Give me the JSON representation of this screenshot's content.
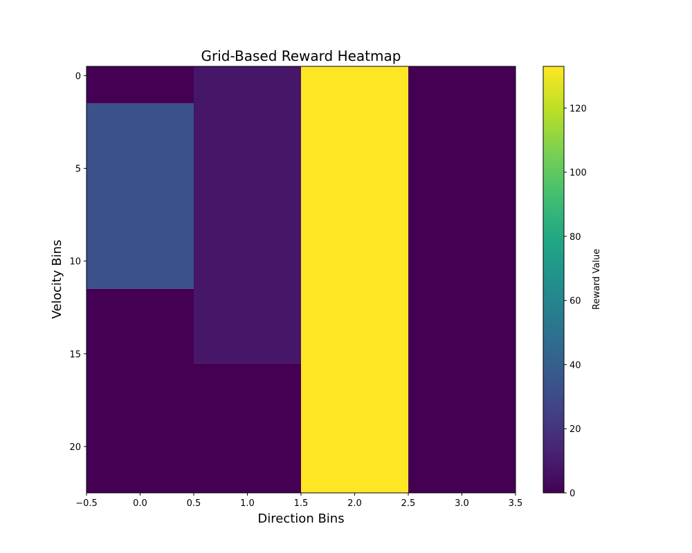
{
  "chart_data": {
    "type": "heatmap",
    "title": "Grid-Based Reward Heatmap",
    "xlabel": "Direction Bins",
    "ylabel": "Velocity Bins",
    "x_range": [
      -0.5,
      3.5
    ],
    "y_range": [
      -0.5,
      22.5
    ],
    "y_inverted": true,
    "x_ticks": [
      -0.5,
      0.0,
      0.5,
      1.0,
      1.5,
      2.0,
      2.5,
      3.0,
      3.5
    ],
    "x_tick_labels": [
      "−0.5",
      "0.0",
      "0.5",
      "1.0",
      "1.5",
      "2.0",
      "2.5",
      "3.0",
      "3.5"
    ],
    "y_ticks": [
      0,
      5,
      10,
      15,
      20
    ],
    "y_tick_labels": [
      "0",
      "5",
      "10",
      "15",
      "20"
    ],
    "columns": [
      0,
      1,
      2,
      3
    ],
    "rows": 23,
    "colormap": "viridis",
    "value_range": [
      0,
      133
    ],
    "cells": [
      {
        "col": 0,
        "row_start": 0,
        "row_end": 1,
        "value": 0
      },
      {
        "col": 0,
        "row_start": 2,
        "row_end": 11,
        "value": 33
      },
      {
        "col": 0,
        "row_start": 12,
        "row_end": 22,
        "value": 0
      },
      {
        "col": 1,
        "row_start": 0,
        "row_end": 15,
        "value": 8
      },
      {
        "col": 1,
        "row_start": 16,
        "row_end": 22,
        "value": 0
      },
      {
        "col": 2,
        "row_start": 0,
        "row_end": 22,
        "value": 133
      },
      {
        "col": 3,
        "row_start": 0,
        "row_end": 22,
        "value": 0
      }
    ],
    "colorbar": {
      "label": "Reward Value",
      "ticks": [
        0,
        20,
        40,
        60,
        80,
        100,
        120
      ],
      "tick_labels": [
        "0",
        "20",
        "40",
        "60",
        "80",
        "100",
        "120"
      ]
    },
    "grid": false
  }
}
